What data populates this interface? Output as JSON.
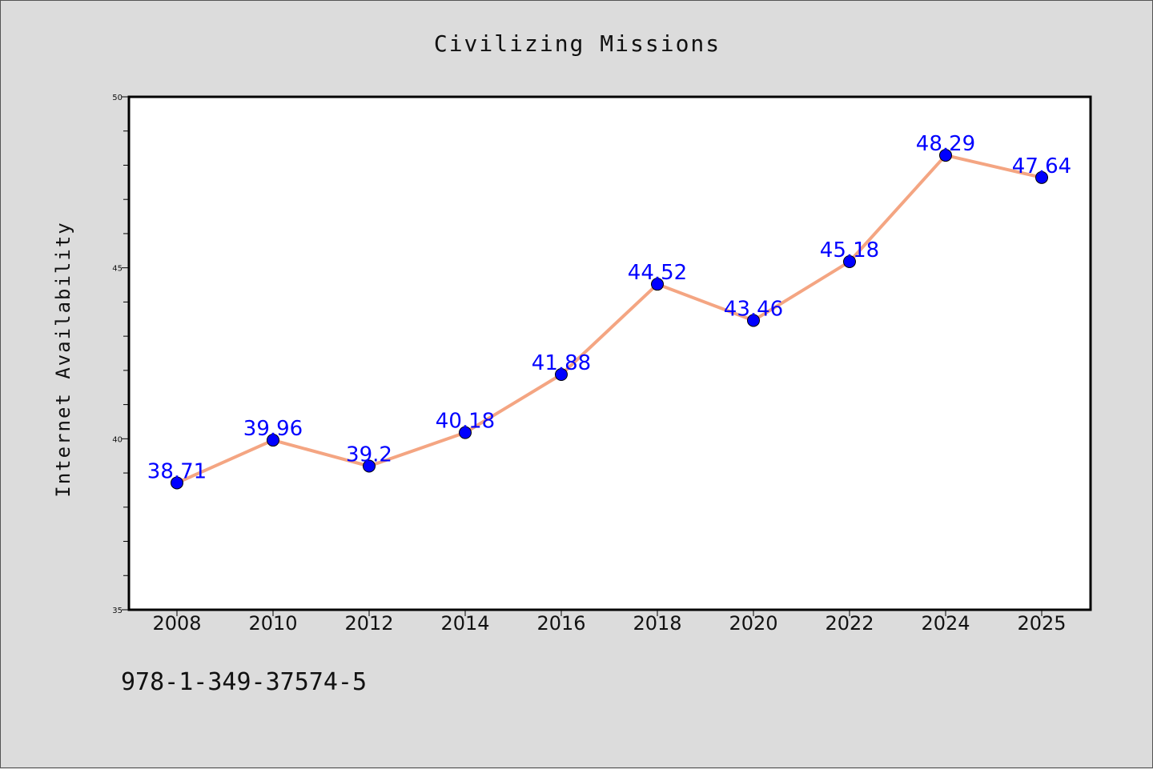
{
  "chart_data": {
    "type": "line",
    "title": "Civilizing Missions",
    "xlabel": "",
    "ylabel": "Internet Availability",
    "categories": [
      "2008",
      "2010",
      "2012",
      "2014",
      "2016",
      "2018",
      "2020",
      "2022",
      "2024",
      "2025"
    ],
    "values": [
      38.71,
      39.96,
      39.2,
      40.18,
      41.88,
      44.52,
      43.46,
      45.18,
      48.29,
      47.64
    ],
    "data_labels": [
      "38.71",
      "39.96",
      "39.2",
      "40.18",
      "41.88",
      "44.52",
      "43.46",
      "45.18",
      "48.29",
      "47.64"
    ],
    "ylim": [
      35,
      50
    ],
    "yticks": [
      "35",
      "40",
      "45",
      "50"
    ],
    "grid": false,
    "legend": false,
    "line_color": "#f4a582",
    "marker_color": "#0000ff",
    "label_color": "#0000ff"
  },
  "footer": {
    "isbn": "978-1-349-37574-5"
  }
}
